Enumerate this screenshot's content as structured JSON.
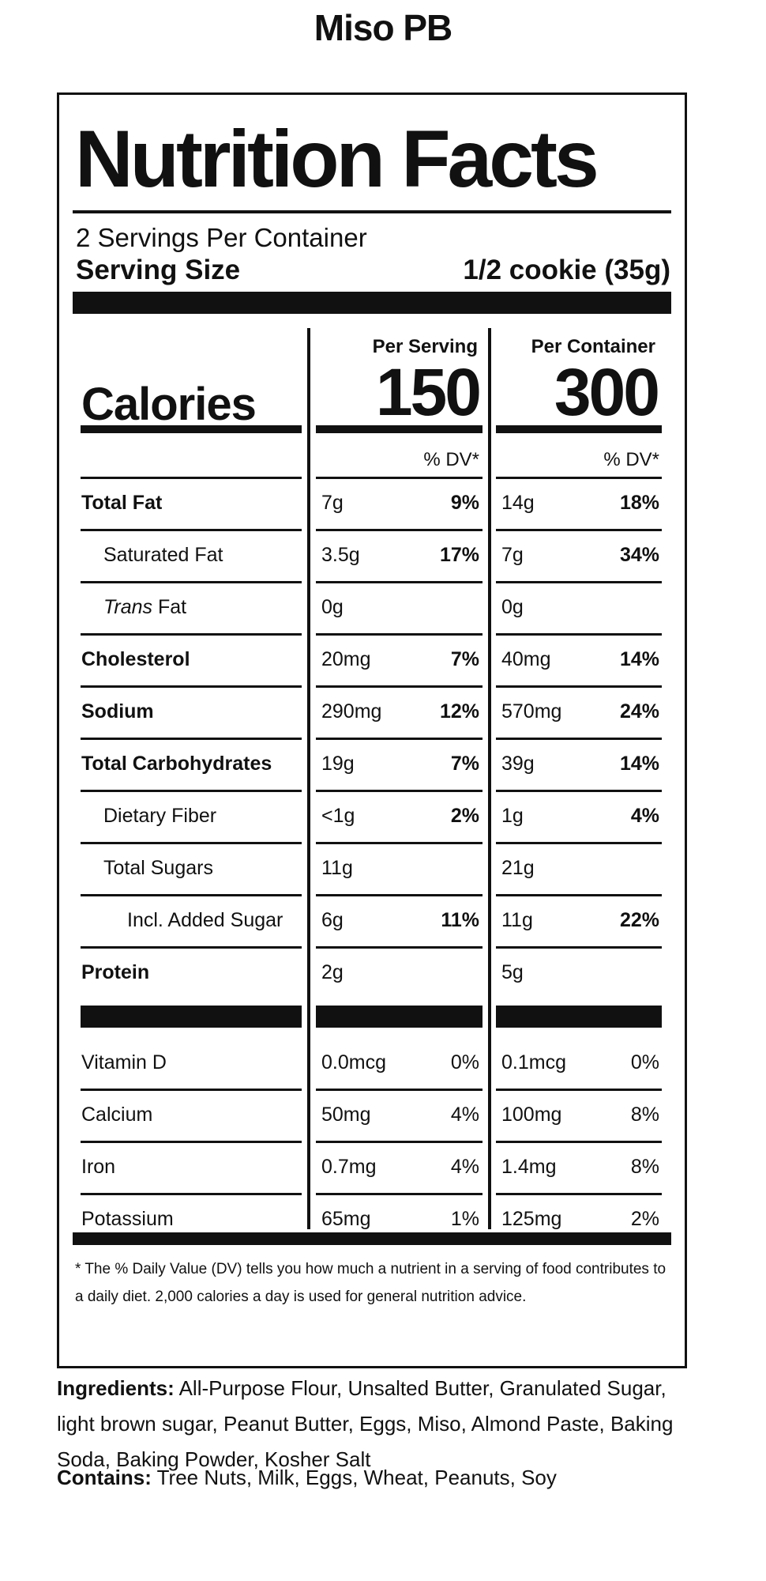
{
  "product": {
    "name": "Miso PB"
  },
  "label": {
    "heading": "Nutrition Facts",
    "servings_per_container": "2 Servings Per Container",
    "serving_size_label": "Serving Size",
    "serving_size_value": "1/2 cookie (35g)",
    "per_serving_header": "Per Serving",
    "per_container_header": "Per Container",
    "calories_label": "Calories",
    "calories_per_serving": "150",
    "calories_per_container": "300",
    "dv_header": "% DV*",
    "nutrients": [
      {
        "name": "Total Fat",
        "indent": 0,
        "bold": true,
        "serving_amount": "7g",
        "serving_dv": "9%",
        "container_amount": "14g",
        "container_dv": "18%"
      },
      {
        "name": "Saturated Fat",
        "indent": 1,
        "bold": false,
        "serving_amount": "3.5g",
        "serving_dv": "17%",
        "container_amount": "7g",
        "container_dv": "34%"
      },
      {
        "name": "Trans Fat",
        "name_italic_part": "Trans",
        "name_rest": " Fat",
        "indent": 1,
        "bold": false,
        "serving_amount": "0g",
        "serving_dv": "",
        "container_amount": "0g",
        "container_dv": ""
      },
      {
        "name": "Cholesterol",
        "indent": 0,
        "bold": true,
        "serving_amount": "20mg",
        "serving_dv": "7%",
        "container_amount": "40mg",
        "container_dv": "14%"
      },
      {
        "name": "Sodium",
        "indent": 0,
        "bold": true,
        "serving_amount": "290mg",
        "serving_dv": "12%",
        "container_amount": "570mg",
        "container_dv": "24%"
      },
      {
        "name": "Total Carbohydrates",
        "indent": 0,
        "bold": true,
        "serving_amount": "19g",
        "serving_dv": "7%",
        "container_amount": "39g",
        "container_dv": "14%"
      },
      {
        "name": "Dietary Fiber",
        "indent": 1,
        "bold": false,
        "serving_amount": "<1g",
        "serving_dv": "2%",
        "container_amount": "1g",
        "container_dv": "4%"
      },
      {
        "name": "Total Sugars",
        "indent": 1,
        "bold": false,
        "serving_amount": "11g",
        "serving_dv": "",
        "container_amount": "21g",
        "container_dv": ""
      },
      {
        "name": "Incl. Added Sugar",
        "indent": 2,
        "bold": false,
        "serving_amount": "6g",
        "serving_dv": "11%",
        "container_amount": "11g",
        "container_dv": "22%"
      },
      {
        "name": "Protein",
        "indent": 0,
        "bold": true,
        "serving_amount": "2g",
        "serving_dv": "",
        "container_amount": "5g",
        "container_dv": ""
      }
    ],
    "vitamins": [
      {
        "name": "Vitamin D",
        "serving_amount": "0.0mcg",
        "serving_dv": "0%",
        "container_amount": "0.1mcg",
        "container_dv": "0%"
      },
      {
        "name": "Calcium",
        "serving_amount": "50mg",
        "serving_dv": "4%",
        "container_amount": "100mg",
        "container_dv": "8%"
      },
      {
        "name": "Iron",
        "serving_amount": "0.7mg",
        "serving_dv": "4%",
        "container_amount": "1.4mg",
        "container_dv": "8%"
      },
      {
        "name": "Potassium",
        "serving_amount": "65mg",
        "serving_dv": "1%",
        "container_amount": "125mg",
        "container_dv": "2%"
      }
    ],
    "footnote": "* The % Daily Value (DV) tells you how much a nutrient in a serving of food contributes to a daily diet. 2,000 calories a day is used for general nutrition advice."
  },
  "ingredients": {
    "label": "Ingredients:",
    "text": " All-Purpose Flour, Unsalted Butter, Granulated Sugar, light brown sugar, Peanut Butter, Eggs, Miso, Almond Paste, Baking Soda, Baking Powder, Kosher Salt"
  },
  "contains": {
    "label": "Contains:",
    "text": " Tree Nuts, Milk, Eggs, Wheat, Peanuts, Soy"
  }
}
